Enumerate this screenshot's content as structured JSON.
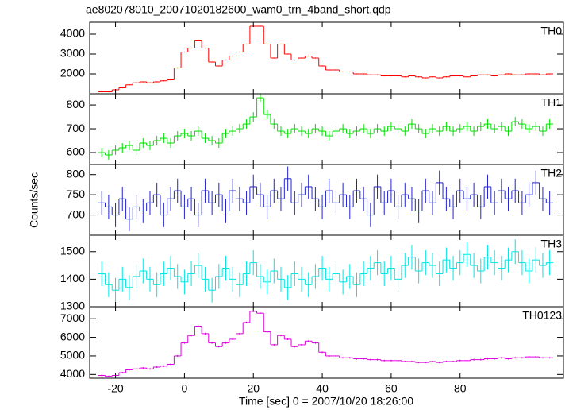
{
  "figure": {
    "title": "ae802078010_20071020182600_wam0_trn_4band_short.qdp",
    "xlabel": "Time [sec] 0 = 2007/10/20 18:26:00",
    "ylabel": "Counts/sec",
    "xlim": [
      -27.5,
      110
    ],
    "xticks": [
      -20,
      0,
      20,
      40,
      60,
      80
    ],
    "x": [
      -24,
      -22,
      -20,
      -18,
      -16,
      -14,
      -12,
      -10,
      -8,
      -6,
      -4,
      -2,
      0,
      2,
      4,
      6,
      8,
      10,
      12,
      14,
      16,
      18,
      20,
      22,
      24,
      26,
      28,
      30,
      32,
      34,
      36,
      38,
      40,
      42,
      44,
      46,
      48,
      50,
      52,
      54,
      56,
      58,
      60,
      62,
      64,
      66,
      68,
      70,
      72,
      74,
      76,
      78,
      80,
      82,
      84,
      86,
      88,
      90,
      92,
      94,
      96,
      98,
      100,
      102,
      104,
      106
    ]
  },
  "chart_data": [
    {
      "type": "step",
      "label": "TH0",
      "color": "#ff0000",
      "ylim": [
        1000,
        4600
      ],
      "yticks": [
        2000,
        3000,
        4000
      ],
      "error": 25,
      "values": [
        1100,
        1100,
        1200,
        1300,
        1450,
        1550,
        1600,
        1550,
        1600,
        1650,
        1700,
        2300,
        3100,
        3300,
        3700,
        3300,
        2600,
        2400,
        2700,
        2900,
        3100,
        3500,
        4400,
        4400,
        3500,
        2800,
        3500,
        3000,
        2700,
        2800,
        2900,
        2800,
        2400,
        2200,
        2200,
        2100,
        2100,
        2000,
        2000,
        1950,
        1950,
        1900,
        1900,
        1900,
        1850,
        1900,
        1850,
        1800,
        1850,
        1800,
        1850,
        1900,
        1900,
        1850,
        1900,
        1950,
        1950,
        1900,
        1950,
        2000,
        1950,
        1950,
        2000,
        2000,
        1950,
        2000
      ]
    },
    {
      "type": "step",
      "label": "TH1",
      "color": "#00dd00",
      "ylim": [
        550,
        847
      ],
      "yticks": [
        600,
        700,
        800
      ],
      "error": 20,
      "values": [
        600,
        590,
        610,
        620,
        630,
        610,
        640,
        630,
        650,
        660,
        640,
        670,
        680,
        670,
        690,
        660,
        650,
        640,
        680,
        690,
        700,
        720,
        750,
        830,
        760,
        720,
        690,
        680,
        700,
        690,
        680,
        700,
        690,
        670,
        690,
        700,
        680,
        690,
        700,
        680,
        700,
        690,
        710,
        700,
        690,
        720,
        700,
        680,
        700,
        690,
        710,
        690,
        700,
        710,
        690,
        710,
        720,
        700,
        710,
        690,
        730,
        720,
        700,
        710,
        690,
        720
      ]
    },
    {
      "type": "step",
      "label": "TH2",
      "color": "#2222cc",
      "ylim": [
        650,
        825
      ],
      "yticks": [
        700,
        750,
        800
      ],
      "error": 30,
      "values": [
        730,
        720,
        700,
        740,
        690,
        720,
        710,
        730,
        750,
        700,
        740,
        760,
        720,
        740,
        700,
        760,
        730,
        750,
        710,
        760,
        740,
        730,
        770,
        750,
        720,
        760,
        740,
        790,
        730,
        750,
        770,
        740,
        720,
        760,
        730,
        750,
        720,
        760,
        740,
        700,
        770,
        730,
        760,
        720,
        750,
        740,
        710,
        760,
        730,
        780,
        740,
        720,
        760,
        740,
        750,
        720,
        770,
        730,
        760,
        740,
        760,
        730,
        750,
        780,
        740,
        730
      ]
    },
    {
      "type": "step",
      "label": "TH3",
      "color": "#00e5e5",
      "ylim": [
        1300,
        1560
      ],
      "yticks": [
        1300,
        1400,
        1500
      ],
      "error": 45,
      "values": [
        1420,
        1380,
        1360,
        1400,
        1370,
        1410,
        1430,
        1400,
        1380,
        1420,
        1440,
        1410,
        1390,
        1420,
        1450,
        1400,
        1360,
        1410,
        1440,
        1400,
        1380,
        1420,
        1460,
        1410,
        1390,
        1430,
        1400,
        1370,
        1420,
        1400,
        1380,
        1410,
        1440,
        1400,
        1420,
        1390,
        1410,
        1380,
        1420,
        1440,
        1460,
        1420,
        1440,
        1400,
        1450,
        1480,
        1430,
        1460,
        1450,
        1420,
        1470,
        1440,
        1460,
        1490,
        1450,
        1430,
        1480,
        1460,
        1440,
        1470,
        1500,
        1460,
        1430,
        1470,
        1450,
        1460
      ]
    },
    {
      "type": "step",
      "label": "TH0123",
      "color": "#dd00dd",
      "ylim": [
        3800,
        7650
      ],
      "yticks": [
        4000,
        5000,
        6000,
        7000
      ],
      "error": 45,
      "values": [
        3950,
        3900,
        3950,
        4100,
        4250,
        4300,
        4350,
        4300,
        4400,
        4450,
        4550,
        5000,
        5700,
        6100,
        6600,
        6200,
        5700,
        5500,
        5700,
        5900,
        6200,
        6800,
        7400,
        7300,
        6300,
        5600,
        6100,
        5900,
        5500,
        5600,
        5800,
        5700,
        5200,
        5000,
        5000,
        4900,
        4900,
        4850,
        4850,
        4800,
        4800,
        4750,
        4750,
        4750,
        4700,
        4700,
        4650,
        4650,
        4700,
        4650,
        4700,
        4700,
        4750,
        4750,
        4800,
        4800,
        4850,
        4850,
        4900,
        4850,
        4900,
        4900,
        4950,
        4950,
        4900,
        4900
      ]
    }
  ]
}
